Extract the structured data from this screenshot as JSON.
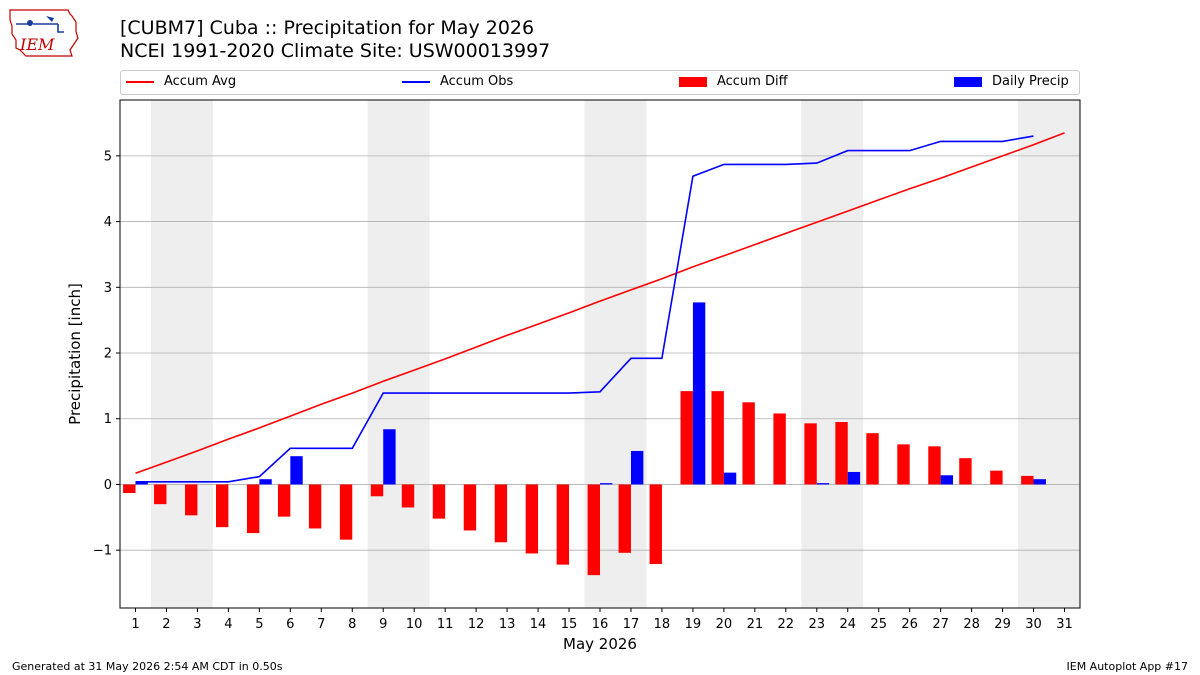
{
  "header": {
    "title": "[CUBM7] Cuba :: Precipitation for May 2026",
    "subtitle": "NCEI 1991-2020 Climate Site: USW00013997",
    "logo_text": "IEM"
  },
  "footer": {
    "left": "Generated at 31 May 2026 2:54 AM CDT in 0.50s",
    "right": "IEM Autoplot App #17"
  },
  "colors": {
    "avg": "#ff0000",
    "obs": "#0000ff",
    "diff": "#ff0000",
    "daily": "#0000ff",
    "weekend": "#eeeeee",
    "grid": "#b0b0b0"
  },
  "legend": [
    {
      "label": "Accum Avg",
      "kind": "line",
      "color": "#ff0000"
    },
    {
      "label": "Accum Obs",
      "kind": "line",
      "color": "#0000ff"
    },
    {
      "label": "Accum Diff",
      "kind": "box",
      "color": "#ff0000"
    },
    {
      "label": "Daily Precip",
      "kind": "box",
      "color": "#0000ff"
    }
  ],
  "chart_data": {
    "type": "bar",
    "xlabel": "May 2026",
    "ylabel": "Precipitation [inch]",
    "xlim": [
      0.5,
      31.5
    ],
    "ylim": [
      -1.88,
      5.85
    ],
    "yticks": [
      -1,
      0,
      1,
      2,
      3,
      4,
      5
    ],
    "ytick_labels": [
      "−1",
      "0",
      "1",
      "2",
      "3",
      "4",
      "5"
    ],
    "x": [
      1,
      2,
      3,
      4,
      5,
      6,
      7,
      8,
      9,
      10,
      11,
      12,
      13,
      14,
      15,
      16,
      17,
      18,
      19,
      20,
      21,
      22,
      23,
      24,
      25,
      26,
      27,
      28,
      29,
      30,
      31
    ],
    "shaded_days": [
      [
        2,
        3
      ],
      [
        9,
        10
      ],
      [
        16,
        17
      ],
      [
        23,
        24
      ],
      [
        30,
        31
      ]
    ],
    "grid": "y",
    "series": [
      {
        "name": "Accum Avg",
        "kind": "line",
        "values": [
          0.17,
          0.34,
          0.51,
          0.69,
          0.86,
          1.04,
          1.22,
          1.39,
          1.57,
          1.74,
          1.91,
          2.09,
          2.27,
          2.44,
          2.61,
          2.79,
          2.96,
          3.13,
          3.31,
          3.48,
          3.65,
          3.82,
          3.99,
          4.16,
          4.33,
          4.5,
          4.66,
          4.83,
          5.0,
          5.17,
          5.35
        ]
      },
      {
        "name": "Accum Obs",
        "kind": "line",
        "values": [
          0.04,
          0.04,
          0.04,
          0.04,
          0.12,
          0.55,
          0.55,
          0.55,
          1.39,
          1.39,
          1.39,
          1.39,
          1.39,
          1.39,
          1.39,
          1.41,
          1.92,
          1.92,
          4.69,
          4.87,
          4.87,
          4.87,
          4.89,
          5.08,
          5.08,
          5.08,
          5.22,
          5.22,
          5.22,
          5.3,
          null
        ]
      },
      {
        "name": "Accum Diff",
        "kind": "bar",
        "values": [
          -0.13,
          -0.3,
          -0.47,
          -0.65,
          -0.74,
          -0.49,
          -0.67,
          -0.84,
          -0.18,
          -0.35,
          -0.52,
          -0.7,
          -0.88,
          -1.05,
          -1.22,
          -1.38,
          -1.04,
          -1.21,
          1.42,
          1.42,
          1.25,
          1.08,
          0.93,
          0.95,
          0.78,
          0.61,
          0.58,
          0.4,
          0.21,
          0.13,
          null
        ]
      },
      {
        "name": "Daily Precip",
        "kind": "bar",
        "values": [
          0.04,
          0,
          0,
          0,
          0.08,
          0.43,
          0,
          0,
          0.84,
          0,
          0,
          0,
          0,
          0,
          0,
          0.02,
          0.51,
          0,
          2.77,
          0.18,
          0,
          0,
          0.02,
          0.19,
          0,
          0,
          0.14,
          0,
          0,
          0.08,
          null
        ]
      }
    ]
  }
}
